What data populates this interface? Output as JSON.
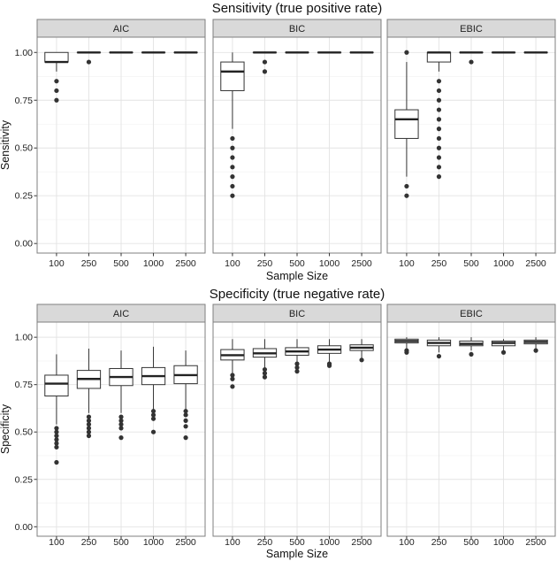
{
  "chart_data": [
    {
      "type": "boxplot",
      "title": "Sensitivity (true positive rate)",
      "xlabel": "Sample Size",
      "ylabel": "Sensitivity",
      "ylim": [
        -0.05,
        1.08
      ],
      "yticks": [
        "0.00",
        "0.25",
        "0.50",
        "0.75",
        "1.00"
      ],
      "ytick_values": [
        0,
        0.25,
        0.5,
        0.75,
        1.0
      ],
      "categories": [
        "100",
        "250",
        "500",
        "1000",
        "2500"
      ],
      "facets": [
        {
          "name": "AIC",
          "boxes": [
            {
              "q1": 0.95,
              "median": 0.95,
              "q3": 1.0,
              "lo": 0.9,
              "hi": 1.0,
              "outliers": [
                0.85,
                0.8,
                0.75
              ]
            },
            {
              "q1": 1.0,
              "median": 1.0,
              "q3": 1.0,
              "lo": 1.0,
              "hi": 1.0,
              "outliers": [
                0.95
              ]
            },
            {
              "q1": 1.0,
              "median": 1.0,
              "q3": 1.0,
              "lo": 1.0,
              "hi": 1.0,
              "outliers": []
            },
            {
              "q1": 1.0,
              "median": 1.0,
              "q3": 1.0,
              "lo": 1.0,
              "hi": 1.0,
              "outliers": []
            },
            {
              "q1": 1.0,
              "median": 1.0,
              "q3": 1.0,
              "lo": 1.0,
              "hi": 1.0,
              "outliers": []
            }
          ]
        },
        {
          "name": "BIC",
          "boxes": [
            {
              "q1": 0.8,
              "median": 0.9,
              "q3": 0.95,
              "lo": 0.6,
              "hi": 1.0,
              "outliers": [
                0.55,
                0.5,
                0.45,
                0.4,
                0.35,
                0.3,
                0.25
              ]
            },
            {
              "q1": 1.0,
              "median": 1.0,
              "q3": 1.0,
              "lo": 1.0,
              "hi": 1.0,
              "outliers": [
                0.95,
                0.9
              ]
            },
            {
              "q1": 1.0,
              "median": 1.0,
              "q3": 1.0,
              "lo": 1.0,
              "hi": 1.0,
              "outliers": []
            },
            {
              "q1": 1.0,
              "median": 1.0,
              "q3": 1.0,
              "lo": 1.0,
              "hi": 1.0,
              "outliers": []
            },
            {
              "q1": 1.0,
              "median": 1.0,
              "q3": 1.0,
              "lo": 1.0,
              "hi": 1.0,
              "outliers": []
            }
          ]
        },
        {
          "name": "EBIC",
          "boxes": [
            {
              "q1": 0.55,
              "median": 0.65,
              "q3": 0.7,
              "lo": 0.35,
              "hi": 0.95,
              "outliers": [
                1.0,
                0.3,
                0.25
              ]
            },
            {
              "q1": 0.95,
              "median": 1.0,
              "q3": 1.0,
              "lo": 0.9,
              "hi": 1.0,
              "outliers": [
                0.85,
                0.8,
                0.75,
                0.7,
                0.65,
                0.6,
                0.55,
                0.5,
                0.45,
                0.4,
                0.35
              ]
            },
            {
              "q1": 1.0,
              "median": 1.0,
              "q3": 1.0,
              "lo": 1.0,
              "hi": 1.0,
              "outliers": [
                0.95
              ]
            },
            {
              "q1": 1.0,
              "median": 1.0,
              "q3": 1.0,
              "lo": 1.0,
              "hi": 1.0,
              "outliers": []
            },
            {
              "q1": 1.0,
              "median": 1.0,
              "q3": 1.0,
              "lo": 1.0,
              "hi": 1.0,
              "outliers": []
            }
          ]
        }
      ]
    },
    {
      "type": "boxplot",
      "title": "Specificity (true negative rate)",
      "xlabel": "Sample Size",
      "ylabel": "Specificity",
      "ylim": [
        -0.05,
        1.08
      ],
      "yticks": [
        "0.00",
        "0.25",
        "0.50",
        "0.75",
        "1.00"
      ],
      "ytick_values": [
        0,
        0.25,
        0.5,
        0.75,
        1.0
      ],
      "categories": [
        "100",
        "250",
        "500",
        "1000",
        "2500"
      ],
      "facets": [
        {
          "name": "AIC",
          "boxes": [
            {
              "q1": 0.69,
              "median": 0.755,
              "q3": 0.8,
              "lo": 0.54,
              "hi": 0.91,
              "outliers": [
                0.52,
                0.5,
                0.48,
                0.46,
                0.44,
                0.42,
                0.34
              ]
            },
            {
              "q1": 0.73,
              "median": 0.78,
              "q3": 0.825,
              "lo": 0.6,
              "hi": 0.94,
              "outliers": [
                0.58,
                0.56,
                0.54,
                0.52,
                0.5,
                0.48
              ]
            },
            {
              "q1": 0.745,
              "median": 0.79,
              "q3": 0.835,
              "lo": 0.6,
              "hi": 0.93,
              "outliers": [
                0.58,
                0.56,
                0.54,
                0.52,
                0.47
              ]
            },
            {
              "q1": 0.75,
              "median": 0.795,
              "q3": 0.84,
              "lo": 0.62,
              "hi": 0.95,
              "outliers": [
                0.61,
                0.59,
                0.57,
                0.5
              ]
            },
            {
              "q1": 0.755,
              "median": 0.8,
              "q3": 0.85,
              "lo": 0.62,
              "hi": 0.93,
              "outliers": [
                0.61,
                0.59,
                0.56,
                0.53,
                0.47
              ]
            }
          ]
        },
        {
          "name": "BIC",
          "boxes": [
            {
              "q1": 0.88,
              "median": 0.905,
              "q3": 0.935,
              "lo": 0.81,
              "hi": 0.99,
              "outliers": [
                0.8,
                0.78,
                0.74
              ]
            },
            {
              "q1": 0.895,
              "median": 0.915,
              "q3": 0.94,
              "lo": 0.84,
              "hi": 0.99,
              "outliers": [
                0.83,
                0.81,
                0.79
              ]
            },
            {
              "q1": 0.905,
              "median": 0.925,
              "q3": 0.945,
              "lo": 0.87,
              "hi": 0.99,
              "outliers": [
                0.86,
                0.84,
                0.82
              ]
            },
            {
              "q1": 0.915,
              "median": 0.935,
              "q3": 0.955,
              "lo": 0.87,
              "hi": 0.99,
              "outliers": [
                0.86,
                0.85
              ]
            },
            {
              "q1": 0.93,
              "median": 0.945,
              "q3": 0.96,
              "lo": 0.89,
              "hi": 0.99,
              "outliers": [
                0.88
              ]
            }
          ]
        },
        {
          "name": "EBIC",
          "boxes": [
            {
              "q1": 0.97,
              "median": 0.98,
              "q3": 0.99,
              "lo": 0.94,
              "hi": 1.0,
              "outliers": [
                0.93,
                0.92
              ]
            },
            {
              "q1": 0.955,
              "median": 0.97,
              "q3": 0.985,
              "lo": 0.92,
              "hi": 1.0,
              "outliers": [
                0.9
              ]
            },
            {
              "q1": 0.955,
              "median": 0.965,
              "q3": 0.98,
              "lo": 0.93,
              "hi": 1.0,
              "outliers": [
                0.91
              ]
            },
            {
              "q1": 0.955,
              "median": 0.97,
              "q3": 0.98,
              "lo": 0.93,
              "hi": 0.99,
              "outliers": [
                0.92
              ]
            },
            {
              "q1": 0.965,
              "median": 0.975,
              "q3": 0.985,
              "lo": 0.94,
              "hi": 1.0,
              "outliers": [
                0.93
              ]
            }
          ]
        }
      ]
    }
  ]
}
